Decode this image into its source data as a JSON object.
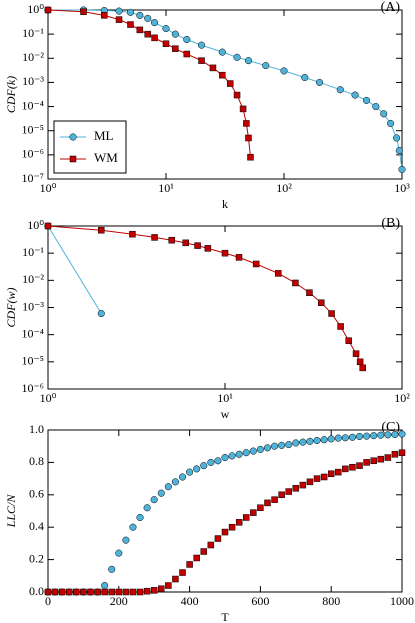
{
  "chart_data": [
    {
      "type": "line",
      "panel_label": "(A)",
      "xlabel": "k",
      "ylabel": "CDF(k)",
      "xscale": "log",
      "yscale": "log",
      "xlim": [
        1,
        1000
      ],
      "ylim": [
        1e-07,
        1
      ],
      "xticks": [
        {
          "value": 1,
          "label": "10⁰"
        },
        {
          "value": 10,
          "label": "10¹"
        },
        {
          "value": 100,
          "label": "10²"
        },
        {
          "value": 1000,
          "label": "10³"
        }
      ],
      "yticks": [
        {
          "value": 1e-07,
          "label": "10⁻⁷"
        },
        {
          "value": 1e-06,
          "label": "10⁻⁶"
        },
        {
          "value": 1e-05,
          "label": "10⁻⁵"
        },
        {
          "value": 0.0001,
          "label": "10⁻⁴"
        },
        {
          "value": 0.001,
          "label": "10⁻³"
        },
        {
          "value": 0.01,
          "label": "10⁻²"
        },
        {
          "value": 0.1,
          "label": "10⁻¹"
        },
        {
          "value": 1,
          "label": "10⁰"
        }
      ],
      "legend": "lower left",
      "series": [
        {
          "name": "ML",
          "color": "#4fb3d9",
          "marker": "circle",
          "x": [
            1,
            2,
            3,
            4,
            5,
            6,
            7,
            8,
            10,
            12,
            15,
            20,
            30,
            40,
            50,
            70,
            100,
            150,
            200,
            300,
            400,
            500,
            600,
            700,
            800,
            900,
            950,
            1000
          ],
          "values": [
            1,
            1,
            0.95,
            0.9,
            0.8,
            0.6,
            0.45,
            0.3,
            0.17,
            0.1,
            0.06,
            0.035,
            0.018,
            0.011,
            0.008,
            0.005,
            0.003,
            0.0016,
            0.001,
            0.0005,
            0.0003,
            0.00018,
            0.0001,
            5e-05,
            2e-05,
            5e-06,
            1.5e-06,
            2.5e-07
          ]
        },
        {
          "name": "WM",
          "color": "#c00000",
          "marker": "square",
          "x": [
            1,
            2,
            3,
            4,
            5,
            6,
            7,
            8,
            10,
            12,
            15,
            20,
            25,
            30,
            35,
            40,
            45,
            48,
            50,
            52
          ],
          "values": [
            1,
            0.85,
            0.6,
            0.4,
            0.25,
            0.15,
            0.1,
            0.07,
            0.04,
            0.025,
            0.015,
            0.008,
            0.004,
            0.002,
            0.0009,
            0.0003,
            8e-05,
            2e-05,
            5e-06,
            8e-07
          ]
        }
      ]
    },
    {
      "type": "line",
      "panel_label": "(B)",
      "xlabel": "w",
      "ylabel": "CDF(w)",
      "xscale": "log",
      "yscale": "log",
      "xlim": [
        1,
        100
      ],
      "ylim": [
        1e-06,
        1
      ],
      "xticks": [
        {
          "value": 1,
          "label": "10⁰"
        },
        {
          "value": 10,
          "label": "10¹"
        },
        {
          "value": 100,
          "label": "10²"
        }
      ],
      "yticks": [
        {
          "value": 1e-06,
          "label": "10⁻⁶"
        },
        {
          "value": 1e-05,
          "label": "10⁻⁵"
        },
        {
          "value": 0.0001,
          "label": "10⁻⁴"
        },
        {
          "value": 0.001,
          "label": "10⁻³"
        },
        {
          "value": 0.01,
          "label": "10⁻²"
        },
        {
          "value": 0.1,
          "label": "10⁻¹"
        },
        {
          "value": 1,
          "label": "10⁰"
        }
      ],
      "series": [
        {
          "color": "#4fb3d9",
          "marker": "circle",
          "x": [
            1,
            2
          ],
          "values": [
            1,
            0.0006
          ]
        },
        {
          "color": "#c00000",
          "marker": "square",
          "x": [
            1,
            2,
            3,
            4,
            5,
            6,
            7,
            8,
            10,
            12,
            15,
            20,
            25,
            30,
            35,
            40,
            45,
            50,
            55,
            58,
            60
          ],
          "values": [
            1,
            0.7,
            0.5,
            0.38,
            0.3,
            0.24,
            0.19,
            0.15,
            0.1,
            0.07,
            0.04,
            0.018,
            0.008,
            0.0035,
            0.0015,
            0.0006,
            0.0002,
            6e-05,
            2e-05,
            1e-05,
            6e-06
          ]
        }
      ]
    },
    {
      "type": "scatter",
      "panel_label": "(C)",
      "xlabel": "T",
      "ylabel": "LLC/N",
      "xlim": [
        0,
        1000
      ],
      "ylim": [
        0,
        1
      ],
      "xticks": [
        0,
        200,
        400,
        600,
        800,
        1000
      ],
      "yticks": [
        {
          "value": 0,
          "label": "0.0"
        },
        0.2,
        0.4,
        0.6,
        0.8,
        {
          "value": 1,
          "label": "1.0"
        }
      ],
      "series": [
        {
          "color": "#4fb3d9",
          "marker": "circle",
          "x": [
            0,
            20,
            40,
            60,
            80,
            100,
            120,
            140,
            160,
            180,
            200,
            220,
            240,
            260,
            280,
            300,
            320,
            340,
            360,
            380,
            400,
            420,
            440,
            460,
            480,
            500,
            520,
            540,
            560,
            580,
            600,
            620,
            640,
            660,
            680,
            700,
            720,
            740,
            760,
            780,
            800,
            820,
            840,
            860,
            880,
            900,
            920,
            940,
            960,
            980,
            1000
          ],
          "values": [
            0,
            0,
            0,
            0,
            0,
            0,
            0,
            0,
            0.04,
            0.14,
            0.24,
            0.32,
            0.4,
            0.46,
            0.52,
            0.57,
            0.61,
            0.65,
            0.68,
            0.71,
            0.74,
            0.76,
            0.78,
            0.8,
            0.81,
            0.83,
            0.84,
            0.85,
            0.86,
            0.87,
            0.88,
            0.89,
            0.9,
            0.905,
            0.91,
            0.92,
            0.925,
            0.93,
            0.935,
            0.94,
            0.945,
            0.95,
            0.952,
            0.955,
            0.96,
            0.962,
            0.965,
            0.968,
            0.97,
            0.972,
            0.975
          ]
        },
        {
          "color": "#c00000",
          "marker": "square",
          "x": [
            0,
            20,
            40,
            60,
            80,
            100,
            120,
            140,
            160,
            180,
            200,
            220,
            240,
            260,
            280,
            300,
            320,
            340,
            360,
            380,
            400,
            420,
            440,
            460,
            480,
            500,
            520,
            540,
            560,
            580,
            600,
            620,
            640,
            660,
            680,
            700,
            720,
            740,
            760,
            780,
            800,
            820,
            840,
            860,
            880,
            900,
            920,
            940,
            960,
            980,
            1000
          ],
          "values": [
            0,
            0,
            0,
            0,
            0,
            0,
            0,
            0,
            0,
            0,
            0,
            0,
            0,
            0,
            0.005,
            0.01,
            0.02,
            0.04,
            0.08,
            0.12,
            0.17,
            0.21,
            0.25,
            0.29,
            0.33,
            0.37,
            0.4,
            0.43,
            0.46,
            0.49,
            0.52,
            0.55,
            0.57,
            0.6,
            0.62,
            0.64,
            0.66,
            0.68,
            0.7,
            0.71,
            0.73,
            0.74,
            0.76,
            0.77,
            0.78,
            0.8,
            0.81,
            0.82,
            0.83,
            0.85,
            0.86
          ]
        }
      ]
    }
  ]
}
